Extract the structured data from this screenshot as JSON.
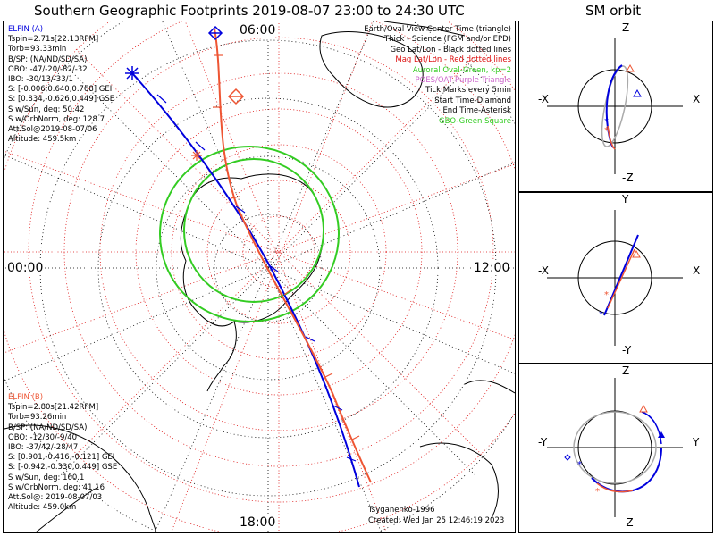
{
  "header": {
    "title": "Southern Geographic Footprints 2019-08-07 23:00 to 24:30 UTC",
    "orbit_title": "SM orbit"
  },
  "map": {
    "time_labels": {
      "top": "06:00",
      "left": "00:00",
      "right": "12:00",
      "bottom": "18:00"
    },
    "colors": {
      "elfin_a": "#0000dd",
      "elfin_b": "#ee5533",
      "auroral_oval": "#33cc22",
      "geo_grid": "#000000",
      "mag_grid": "#dd1111",
      "poes": "#cc66cc",
      "gbo": "#33cc22"
    }
  },
  "elfin_a": {
    "lines": [
      "ELFIN (A)",
      "Tspin=2.71s[22.13RPM]",
      "Torb=93.33min",
      "B/SP: (NA/ND/SD/SA)",
      "OBO: -47/-20/-82/-32",
      "IBO: -30/13/-33/1",
      "S: [-0.006,0.640,0.768] GEI",
      "S: [0.834,-0.626,0.449] GSE",
      "S w/Sun, deg: 50.42",
      "S w/OrbNorm, deg: 128.7",
      "Att.Sol@2019-08-07/06",
      "Altitude: 459.5km"
    ]
  },
  "elfin_b": {
    "lines": [
      "ELFIN (B)",
      "Tspin=2.80s[21.42RPM]",
      "Torb=93.26min",
      "B/SP: (NA/ND/SD/SA)",
      "OBO: -12/30/-9/40",
      "IBO: -37/42/-28/47",
      "S: [0.901,-0.416,-0.121] GEI",
      "S: [-0.942,-0.330,0.449] GSE",
      "S w/Sun, deg: 160.1",
      "S w/OrbNorm, deg: 41.16",
      "Att.Sol@: 2019-08-07/03",
      "Altitude: 459.0km"
    ]
  },
  "legend": {
    "items": [
      {
        "text": "Earth/Oval View Center Time (triangle)",
        "color": "#000000"
      },
      {
        "text": "Thick - Science (FGM and/or EPD)",
        "color": "#000000"
      },
      {
        "text": "Geo Lat/Lon - Black dotted lines",
        "color": "#000000"
      },
      {
        "text": "Mag Lat/Lon - Red dotted lines",
        "color": "#dd1111"
      },
      {
        "text": "Auroral Oval-Green, kp=2",
        "color": "#33cc22"
      },
      {
        "text": "POES/OAT-Purple Triangle",
        "color": "#cc66cc"
      },
      {
        "text": "Tick Marks every 5min",
        "color": "#000000"
      },
      {
        "text": "Start Time-Diamond",
        "color": "#000000"
      },
      {
        "text": "End Time-Asterisk",
        "color": "#000000"
      },
      {
        "text": "GBO-Green Square",
        "color": "#33cc22"
      }
    ]
  },
  "footer": {
    "author": "Tsyganenko-1996",
    "created": "Created: Wed Jan 25 12:46:19 2023"
  },
  "orbit_panels": [
    {
      "top": "Z",
      "bottom": "-Z",
      "left": "-X",
      "right": "X"
    },
    {
      "top": "Y",
      "bottom": "-Y",
      "left": "-X",
      "right": "X"
    },
    {
      "top": "Z",
      "bottom": "-Z",
      "left": "-Y",
      "right": "Y"
    }
  ]
}
